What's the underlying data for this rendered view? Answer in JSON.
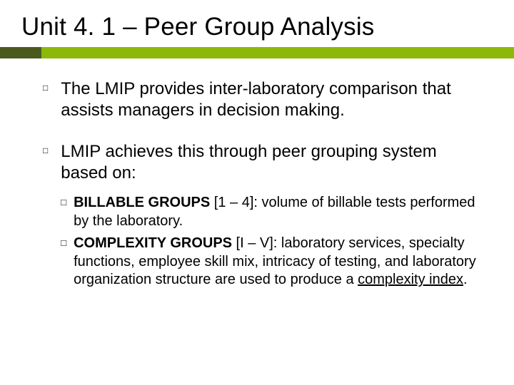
{
  "title": "Unit 4. 1 – Peer Group Analysis",
  "accent_color": "#8cb80a",
  "accent_dark": "#4a5a1e",
  "bullets": [
    {
      "text": "The LMIP provides inter-laboratory comparison that assists managers in decision making."
    },
    {
      "text": "LMIP achieves this through peer grouping system based on:",
      "subs": [
        {
          "bold": "BILLABLE GROUPS",
          "rest": " [1 – 4]: volume of billable tests performed by the laboratory."
        },
        {
          "bold": "COMPLEXITY GROUPS",
          "rest_a": " [I – V]: laboratory services, specialty functions, employee skill mix, intricacy of testing, and laboratory organization structure are used to produce a ",
          "underline": "complexity index",
          "rest_b": "."
        }
      ]
    }
  ]
}
